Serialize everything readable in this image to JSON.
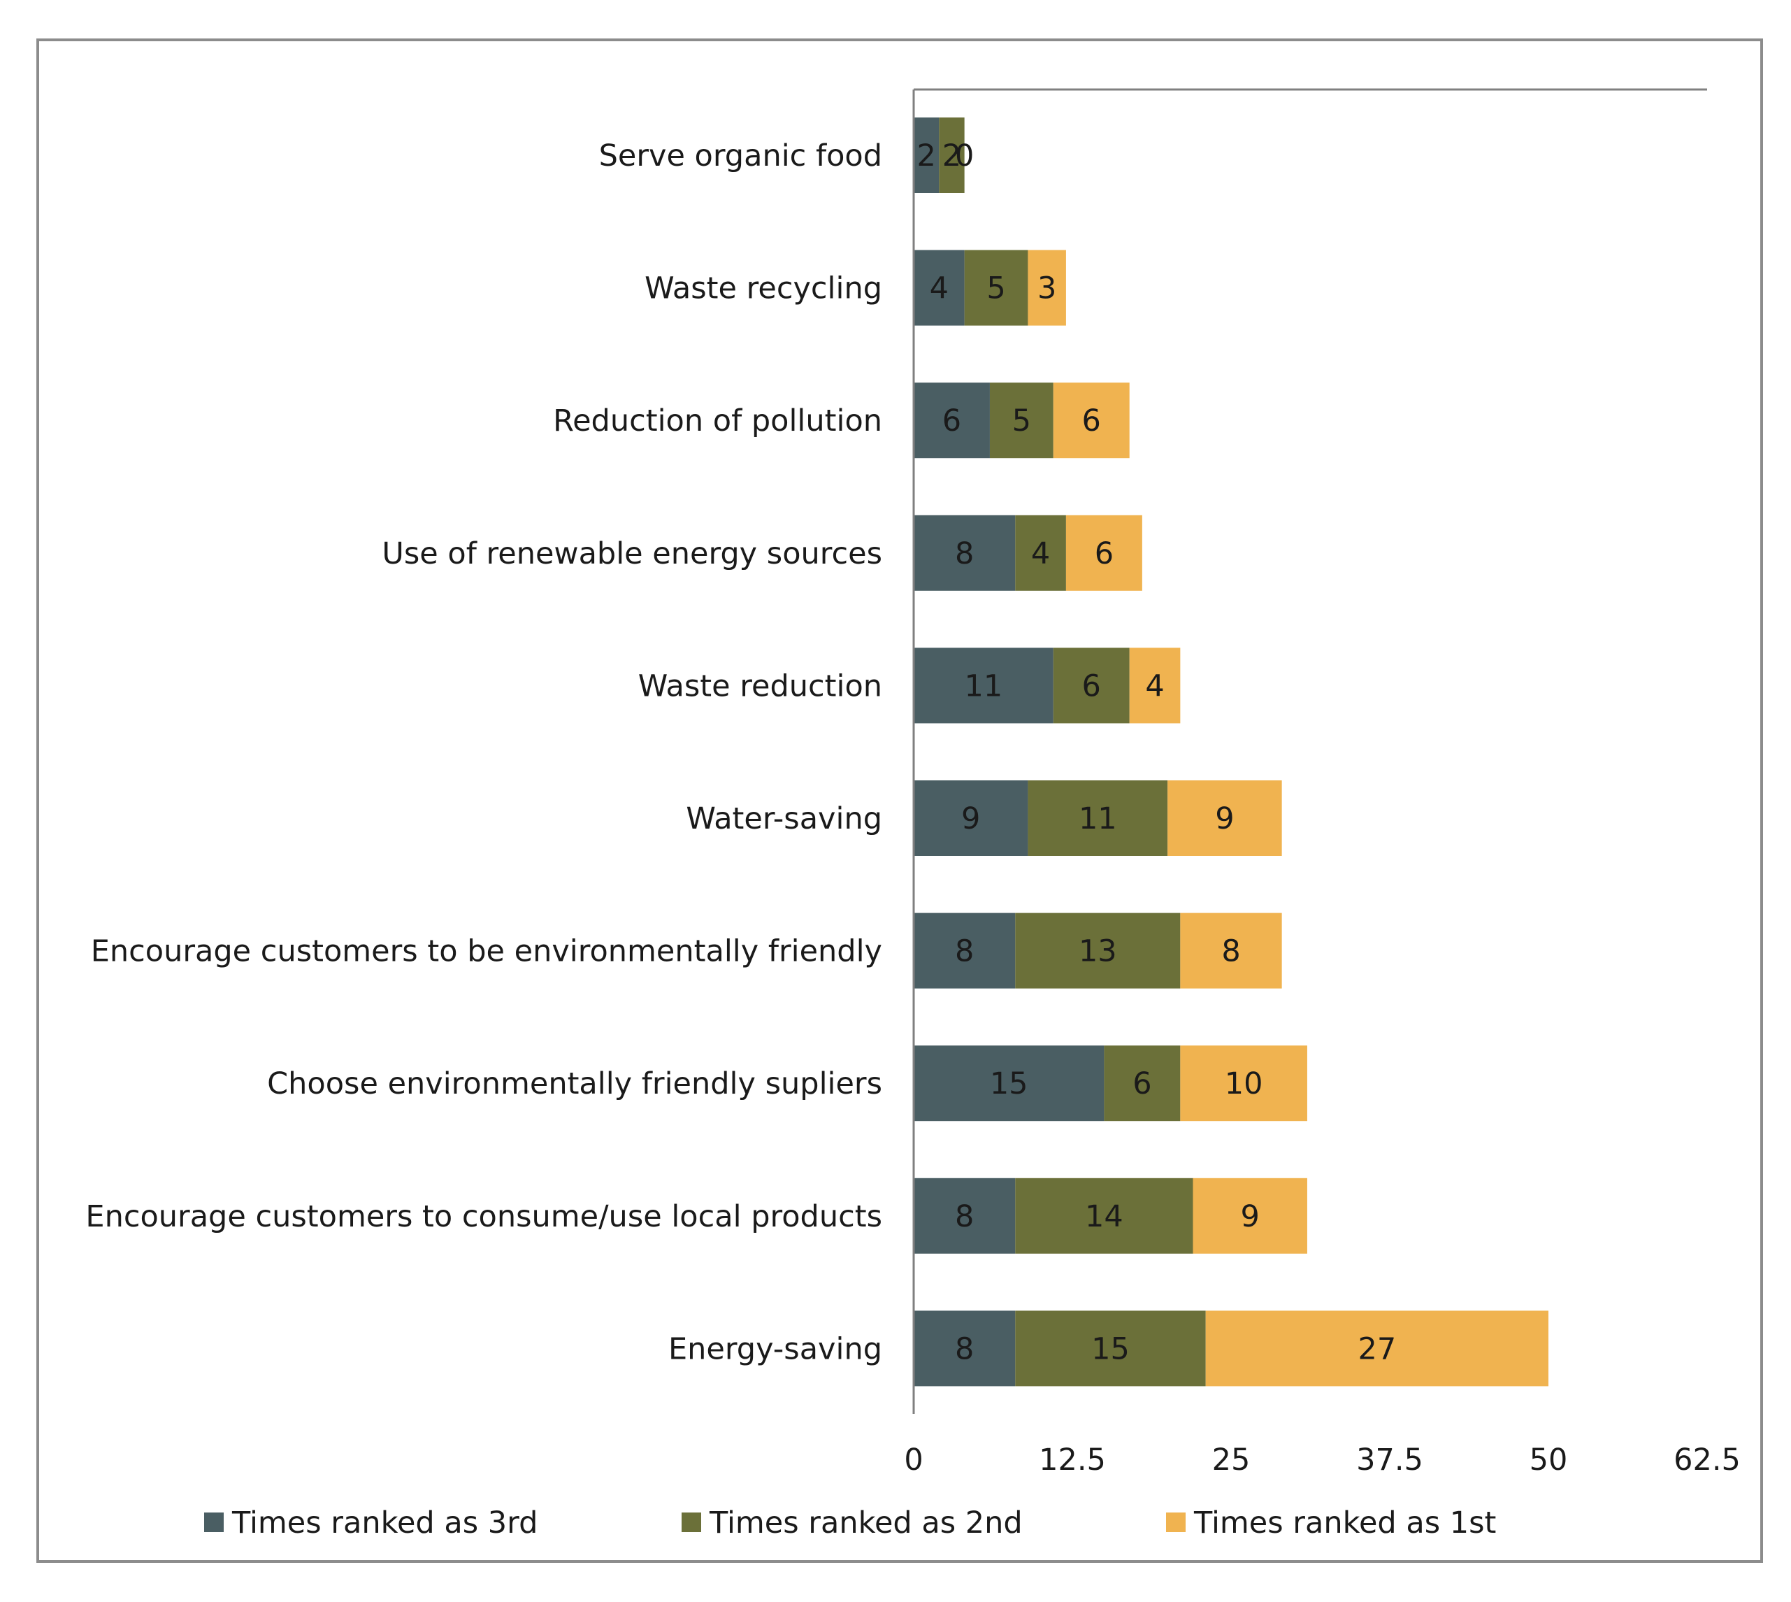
{
  "chart_data": {
    "type": "bar",
    "orientation": "horizontal",
    "stacked": true,
    "title": "",
    "xlabel": "",
    "ylabel": "",
    "xlim": [
      0,
      62.5
    ],
    "xticks": [
      "0",
      "12.5",
      "25",
      "37.5",
      "50",
      "62.5"
    ],
    "categories": [
      "Serve organic food",
      "Waste recycling",
      "Reduction of pollution",
      "Use of renewable energy sources",
      "Waste reduction",
      "Water-saving",
      "Encourage customers to be environmentally friendly",
      "Choose environmentally friendly supliers",
      "Encourage customers to consume/use local products",
      "Energy-saving"
    ],
    "series": [
      {
        "name": "Times ranked as 3rd",
        "color": "#4a5e63",
        "values": [
          2,
          4,
          6,
          8,
          11,
          9,
          8,
          15,
          8,
          8
        ]
      },
      {
        "name": "Times ranked as 2nd",
        "color": "#6b7039",
        "values": [
          2,
          5,
          5,
          4,
          6,
          11,
          13,
          6,
          14,
          15
        ]
      },
      {
        "name": "Times ranked as 1st",
        "color": "#f0b350",
        "values": [
          0,
          3,
          6,
          6,
          4,
          9,
          8,
          10,
          9,
          27
        ]
      }
    ],
    "legend_position": "bottom",
    "grid": false
  }
}
